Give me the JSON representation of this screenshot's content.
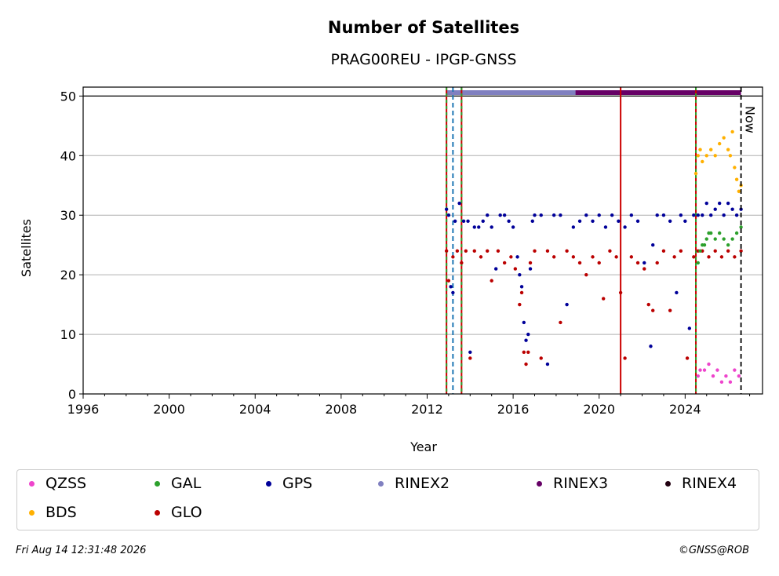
{
  "chart_data": {
    "type": "scatter",
    "title": "Number of Satellites",
    "subtitle": "PRAG00REU - IPGP-GNSS",
    "xlabel": "Year",
    "ylabel": "Satellites",
    "xlim": [
      1996,
      2027.6
    ],
    "ylim": [
      0,
      51.5
    ],
    "x_ticks": [
      1996,
      2000,
      2004,
      2008,
      2012,
      2016,
      2020,
      2024
    ],
    "y_ticks": [
      0,
      10,
      20,
      30,
      40,
      50
    ],
    "grid": "horizontal",
    "now_label": "Now",
    "now_x": 2026.6,
    "legend_position": "below",
    "colors": {
      "QZSS": "#ee44cc",
      "BDS": "#ffb000",
      "GAL": "#2ca02c",
      "GLO": "#bb0000",
      "GPS": "#000099",
      "RINEX2": "#8080c0",
      "RINEX3": "#660066",
      "RINEX4": "#220011"
    },
    "series": [
      {
        "name": "GPS",
        "x": [
          2012.9,
          2013.0,
          2013.1,
          2013.2,
          2013.3,
          2013.5,
          2013.7,
          2013.9,
          2014.0,
          2014.2,
          2014.4,
          2014.6,
          2014.8,
          2015.0,
          2015.2,
          2015.4,
          2015.6,
          2015.8,
          2016.0,
          2016.2,
          2016.3,
          2016.4,
          2016.5,
          2016.6,
          2016.7,
          2016.8,
          2016.9,
          2017.0,
          2017.3,
          2017.6,
          2017.9,
          2018.2,
          2018.5,
          2018.8,
          2019.1,
          2019.4,
          2019.7,
          2020.0,
          2020.3,
          2020.6,
          2020.9,
          2021.2,
          2021.5,
          2021.8,
          2022.1,
          2022.4,
          2022.5,
          2022.7,
          2023.0,
          2023.3,
          2023.6,
          2023.8,
          2024.0,
          2024.2,
          2024.4,
          2024.6,
          2024.8,
          2025.0,
          2025.2,
          2025.4,
          2025.6,
          2025.8,
          2026.0,
          2026.2,
          2026.4,
          2026.6
        ],
        "values": [
          31,
          30,
          18,
          17,
          29,
          32,
          29,
          29,
          7,
          28,
          28,
          29,
          30,
          28,
          21,
          30,
          30,
          29,
          28,
          23,
          20,
          18,
          12,
          9,
          10,
          21,
          29,
          30,
          30,
          5,
          30,
          30,
          15,
          28,
          29,
          30,
          29,
          30,
          28,
          30,
          29,
          28,
          30,
          29,
          22,
          8,
          25,
          30,
          30,
          29,
          17,
          30,
          29,
          11,
          30,
          30,
          30,
          32,
          30,
          31,
          32,
          30,
          32,
          31,
          30,
          31
        ]
      },
      {
        "name": "GLO",
        "x": [
          2012.9,
          2013.0,
          2013.2,
          2013.4,
          2013.6,
          2013.8,
          2014.0,
          2014.2,
          2014.5,
          2014.8,
          2015.0,
          2015.3,
          2015.6,
          2015.9,
          2016.1,
          2016.3,
          2016.4,
          2016.5,
          2016.6,
          2016.7,
          2016.8,
          2017.0,
          2017.3,
          2017.6,
          2017.9,
          2018.2,
          2018.5,
          2018.8,
          2019.1,
          2019.4,
          2019.7,
          2020.0,
          2020.2,
          2020.5,
          2020.8,
          2021.0,
          2021.2,
          2021.5,
          2021.8,
          2022.1,
          2022.3,
          2022.5,
          2022.7,
          2023.0,
          2023.3,
          2023.5,
          2023.8,
          2024.1,
          2024.4,
          2024.6,
          2024.8,
          2025.1,
          2025.4,
          2025.7,
          2026.0,
          2026.3,
          2026.6
        ],
        "values": [
          24,
          19,
          23,
          24,
          22,
          24,
          6,
          24,
          23,
          24,
          19,
          24,
          22,
          23,
          21,
          15,
          17,
          7,
          5,
          7,
          22,
          24,
          6,
          24,
          23,
          12,
          24,
          23,
          22,
          20,
          23,
          22,
          16,
          24,
          23,
          17,
          6,
          23,
          22,
          21,
          15,
          14,
          22,
          24,
          14,
          23,
          24,
          6,
          23,
          24,
          24,
          23,
          24,
          23,
          24,
          23,
          24
        ]
      },
      {
        "name": "GAL",
        "x": [
          2024.6,
          2024.7,
          2024.8,
          2024.9,
          2025.0,
          2025.1,
          2025.2,
          2025.4,
          2025.6,
          2025.8,
          2026.0,
          2026.2,
          2026.4,
          2026.6
        ],
        "values": [
          22,
          24,
          25,
          25,
          26,
          27,
          27,
          26,
          27,
          26,
          25,
          26,
          27,
          28
        ]
      },
      {
        "name": "BDS",
        "x": [
          2024.5,
          2024.6,
          2024.7,
          2024.8,
          2025.0,
          2025.2,
          2025.4,
          2025.6,
          2025.8,
          2026.0,
          2026.1,
          2026.2,
          2026.3,
          2026.4,
          2026.5,
          2026.6
        ],
        "values": [
          37,
          40,
          41,
          39,
          40,
          41,
          40,
          42,
          43,
          41,
          40,
          44,
          38,
          36,
          34,
          35
        ]
      },
      {
        "name": "QZSS",
        "x": [
          2024.6,
          2024.7,
          2024.9,
          2025.1,
          2025.3,
          2025.5,
          2025.7,
          2025.9,
          2026.1,
          2026.3,
          2026.5
        ],
        "values": [
          3,
          4,
          4,
          5,
          3,
          4,
          2,
          3,
          2,
          4,
          3
        ]
      }
    ],
    "rinex_bands": [
      {
        "name": "RINEX2",
        "from": 2012.9,
        "to": 2018.9
      },
      {
        "name": "RINEX3",
        "from": 2018.9,
        "to": 2026.6
      }
    ],
    "vlines": [
      {
        "x": 2012.9,
        "style": "red-green"
      },
      {
        "x": 2013.2,
        "style": "blue-dashed"
      },
      {
        "x": 2013.6,
        "style": "red-green"
      },
      {
        "x": 2021.0,
        "style": "red"
      },
      {
        "x": 2024.5,
        "style": "red-green"
      }
    ]
  },
  "legend": [
    {
      "label": "QZSS",
      "key": "QZSS"
    },
    {
      "label": "GAL",
      "key": "GAL"
    },
    {
      "label": "GPS",
      "key": "GPS"
    },
    {
      "label": "RINEX2",
      "key": "RINEX2"
    },
    {
      "label": "RINEX3",
      "key": "RINEX3"
    },
    {
      "label": "RINEX4",
      "key": "RINEX4"
    },
    {
      "label": "BDS",
      "key": "BDS"
    },
    {
      "label": "GLO",
      "key": "GLO"
    }
  ],
  "footer": {
    "timestamp": "Fri Aug 14 12:31:48 2026",
    "credit": "©GNSS@ROB"
  }
}
